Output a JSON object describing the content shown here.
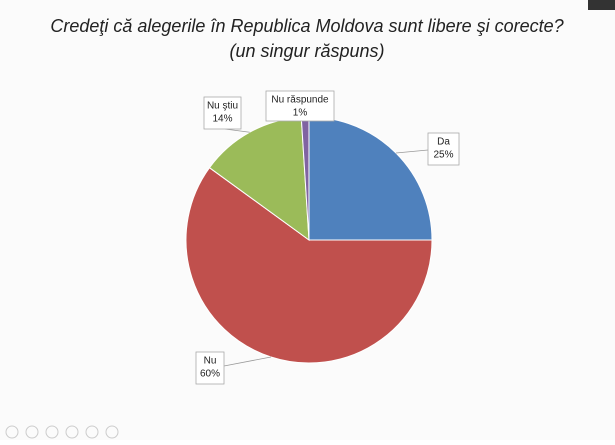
{
  "chart_data": {
    "type": "pie",
    "title": "Credeţi că alegerile în Republica Moldova sunt libere şi corecte?",
    "subtitle": "(un singur răspuns)",
    "categories": [
      "Da",
      "Nu",
      "Nu ştiu",
      "Nu răspunde"
    ],
    "values": [
      25,
      60,
      14,
      1
    ],
    "value_labels": [
      "25%",
      "60%",
      "14%",
      "1%"
    ],
    "colors": [
      "#4f81bd",
      "#c0504d",
      "#9bbb59",
      "#8064a2"
    ]
  }
}
